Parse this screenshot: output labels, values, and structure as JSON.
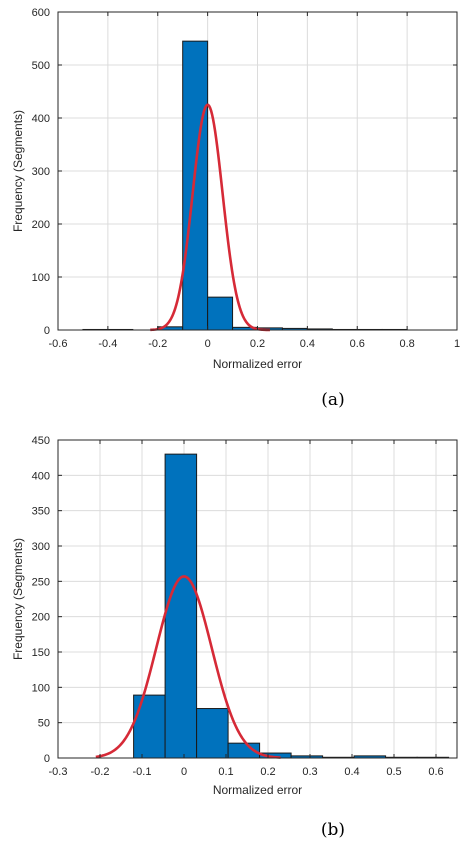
{
  "chart_data": [
    {
      "type": "bar",
      "panel": "a",
      "caption": "(a)",
      "xlabel": "Normalized error",
      "ylabel": "Frequency (Segments)",
      "xlim": [
        -0.6,
        1.0
      ],
      "ylim": [
        0,
        600
      ],
      "xticks": [
        -0.6,
        -0.4,
        -0.2,
        0,
        0.2,
        0.4,
        0.6,
        0.8,
        1
      ],
      "xtick_labels": [
        "-0.6",
        "-0.4",
        "-0.2",
        "0",
        "0.2",
        "0.4",
        "0.6",
        "0.8",
        "1"
      ],
      "yticks": [
        0,
        100,
        200,
        300,
        400,
        500,
        600
      ],
      "ytick_labels": [
        "0",
        "100",
        "200",
        "300",
        "400",
        "500",
        "600"
      ],
      "grid": true,
      "bins": [
        {
          "x0": -0.5,
          "x1": -0.4,
          "value": 1
        },
        {
          "x0": -0.4,
          "x1": -0.3,
          "value": 1
        },
        {
          "x0": -0.3,
          "x1": -0.2,
          "value": 0
        },
        {
          "x0": -0.2,
          "x1": -0.1,
          "value": 6
        },
        {
          "x0": -0.1,
          "x1": 0.0,
          "value": 545
        },
        {
          "x0": 0.0,
          "x1": 0.1,
          "value": 62
        },
        {
          "x0": 0.1,
          "x1": 0.2,
          "value": 5
        },
        {
          "x0": 0.2,
          "x1": 0.3,
          "value": 4
        },
        {
          "x0": 0.3,
          "x1": 0.4,
          "value": 3
        },
        {
          "x0": 0.4,
          "x1": 0.5,
          "value": 2
        },
        {
          "x0": 0.5,
          "x1": 0.6,
          "value": 1
        },
        {
          "x0": 0.6,
          "x1": 0.7,
          "value": 1
        },
        {
          "x0": 0.7,
          "x1": 0.8,
          "value": 1
        }
      ],
      "fit": {
        "type": "normal",
        "mean": 0.0,
        "peak": 425,
        "sigma": 0.06,
        "x_range": [
          -0.23,
          0.25
        ]
      }
    },
    {
      "type": "bar",
      "panel": "b",
      "caption": "(b)",
      "xlabel": "Normalized error",
      "ylabel": "Frequency (Segments)",
      "xlim": [
        -0.3,
        0.65
      ],
      "ylim": [
        0,
        450
      ],
      "xticks": [
        -0.3,
        -0.2,
        -0.1,
        0,
        0.1,
        0.2,
        0.3,
        0.4,
        0.5,
        0.6
      ],
      "xtick_labels": [
        "-0.3",
        "-0.2",
        "-0.1",
        "0",
        "0.1",
        "0.2",
        "0.3",
        "0.4",
        "0.5",
        "0.6"
      ],
      "yticks": [
        0,
        50,
        100,
        150,
        200,
        250,
        300,
        350,
        400,
        450
      ],
      "ytick_labels": [
        "0",
        "50",
        "100",
        "150",
        "200",
        "250",
        "300",
        "350",
        "400",
        "450"
      ],
      "grid": true,
      "bins": [
        {
          "x0": -0.12,
          "x1": -0.045,
          "value": 89
        },
        {
          "x0": -0.045,
          "x1": 0.03,
          "value": 430
        },
        {
          "x0": 0.03,
          "x1": 0.105,
          "value": 70
        },
        {
          "x0": 0.105,
          "x1": 0.18,
          "value": 21
        },
        {
          "x0": 0.18,
          "x1": 0.255,
          "value": 7
        },
        {
          "x0": 0.255,
          "x1": 0.33,
          "value": 3
        },
        {
          "x0": 0.33,
          "x1": 0.405,
          "value": 1
        },
        {
          "x0": 0.405,
          "x1": 0.48,
          "value": 3
        },
        {
          "x0": 0.48,
          "x1": 0.555,
          "value": 1
        },
        {
          "x0": 0.555,
          "x1": 0.63,
          "value": 1
        }
      ],
      "fit": {
        "type": "normal",
        "mean": 0.0,
        "peak": 257,
        "sigma": 0.066,
        "x_range": [
          -0.21,
          0.23
        ]
      }
    }
  ]
}
